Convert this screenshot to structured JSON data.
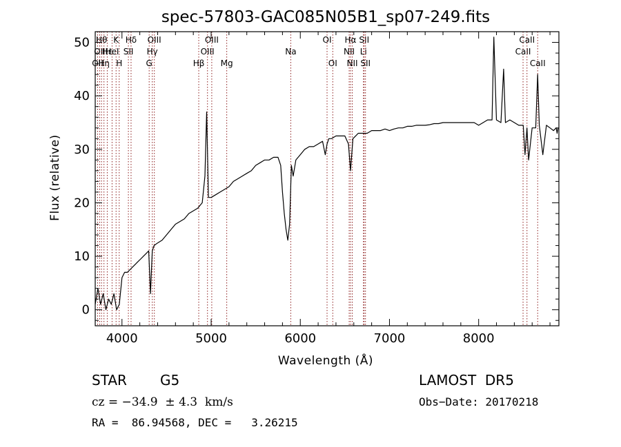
{
  "chart_data": {
    "type": "line",
    "title": "spec-57803-GAC085N05B1_sp07-249.fits",
    "xlabel": "Wavelength (Å)",
    "ylabel": "Flux (relative)",
    "xlim": [
      3700,
      8900
    ],
    "ylim": [
      -3,
      52
    ],
    "xticks": [
      4000,
      5000,
      6000,
      7000,
      8000
    ],
    "yticks": [
      0,
      10,
      20,
      30,
      40,
      50
    ],
    "grid": false,
    "line_color": "#000000",
    "marker_color": "#8b1a1a",
    "series": [
      {
        "x": [
          3700,
          3730,
          3760,
          3790,
          3820,
          3850,
          3880,
          3910,
          3940,
          3970,
          4000,
          4030,
          4060,
          4090,
          4120,
          4150,
          4180,
          4210,
          4240,
          4270,
          4300,
          4320,
          4340,
          4360,
          4400,
          4450,
          4500,
          4550,
          4600,
          4650,
          4700,
          4750,
          4800,
          4850,
          4900,
          4930,
          4950,
          4970,
          5000,
          5050,
          5100,
          5150,
          5200,
          5250,
          5300,
          5350,
          5400,
          5450,
          5500,
          5550,
          5600,
          5650,
          5700,
          5750,
          5780,
          5800,
          5820,
          5840,
          5860,
          5880,
          5900,
          5920,
          5950,
          6000,
          6050,
          6100,
          6150,
          6200,
          6250,
          6280,
          6300,
          6320,
          6350,
          6400,
          6450,
          6500,
          6540,
          6563,
          6590,
          6620,
          6650,
          6700,
          6750,
          6800,
          6850,
          6900,
          6950,
          7000,
          7050,
          7100,
          7150,
          7200,
          7250,
          7300,
          7350,
          7400,
          7450,
          7500,
          7550,
          7600,
          7650,
          7700,
          7750,
          7800,
          7850,
          7900,
          7950,
          8000,
          8050,
          8100,
          8150,
          8170,
          8200,
          8250,
          8280,
          8300,
          8350,
          8400,
          8450,
          8500,
          8520,
          8542,
          8560,
          8600,
          8640,
          8662,
          8680,
          8720,
          8760,
          8800,
          8840,
          8870,
          8880,
          8890
        ],
        "values": [
          1,
          4,
          1,
          3,
          0,
          2,
          1,
          3,
          0,
          1,
          6,
          7,
          7,
          7.5,
          8,
          8.5,
          9,
          9.5,
          10,
          10.5,
          11,
          3,
          11,
          12,
          12.5,
          13,
          14,
          15,
          16,
          16.5,
          17,
          18,
          18.5,
          19,
          20,
          25,
          37,
          21,
          21,
          21.5,
          22,
          22.5,
          23,
          24,
          24.5,
          25,
          25.5,
          26,
          27,
          27.5,
          28,
          28,
          28.5,
          28.5,
          27,
          22,
          18,
          15,
          13,
          16,
          27,
          25,
          28,
          29,
          30,
          30.5,
          30.5,
          31,
          31.5,
          29,
          31,
          32,
          32,
          32.5,
          32.5,
          32.5,
          31,
          26,
          32,
          32.5,
          33,
          33,
          33,
          33.5,
          33.5,
          33.5,
          33.8,
          33.5,
          33.8,
          34,
          34,
          34.3,
          34.3,
          34.5,
          34.5,
          34.5,
          34.6,
          34.8,
          34.8,
          35,
          35,
          35,
          35,
          35,
          35,
          35,
          35,
          34.5,
          35,
          35.5,
          35.5,
          51,
          35.5,
          35,
          45,
          35,
          35.5,
          35,
          34.5,
          34.5,
          29,
          34,
          28,
          34,
          34,
          44,
          34.5,
          29,
          34.5,
          34,
          33.5,
          34,
          33,
          34
        ]
      }
    ],
    "line_markers": [
      {
        "x": 3727,
        "label": "OII",
        "row": 2
      },
      {
        "x": 3750,
        "label": "OII",
        "row": 1
      },
      {
        "x": 3771,
        "label": "Hθ",
        "row": 0
      },
      {
        "x": 3798,
        "label": "Hη",
        "row": 2
      },
      {
        "x": 3835,
        "label": "Hε",
        "row": 1
      },
      {
        "x": 3889,
        "label": "HeI",
        "row": 1
      },
      {
        "x": 3934,
        "label": "K",
        "row": 0
      },
      {
        "x": 3969,
        "label": "H",
        "row": 2
      },
      {
        "x": 4072,
        "label": "SII",
        "row": 1
      },
      {
        "x": 4102,
        "label": "Hδ",
        "row": 0
      },
      {
        "x": 4305,
        "label": "G",
        "row": 2
      },
      {
        "x": 4340,
        "label": "Hγ",
        "row": 1
      },
      {
        "x": 4363,
        "label": "OIII",
        "row": 0
      },
      {
        "x": 4861,
        "label": "Hβ",
        "row": 2
      },
      {
        "x": 4959,
        "label": "OIII",
        "row": 1
      },
      {
        "x": 5007,
        "label": "OIII",
        "row": 0
      },
      {
        "x": 5175,
        "label": "Mg",
        "row": 2
      },
      {
        "x": 5893,
        "label": "Na",
        "row": 1
      },
      {
        "x": 6300,
        "label": "OI",
        "row": 0
      },
      {
        "x": 6364,
        "label": "OI",
        "row": 2
      },
      {
        "x": 6548,
        "label": "NII",
        "row": 1
      },
      {
        "x": 6563,
        "label": "Hα",
        "row": 0
      },
      {
        "x": 6583,
        "label": "NII",
        "row": 2
      },
      {
        "x": 6708,
        "label": "Li",
        "row": 1
      },
      {
        "x": 6716,
        "label": "SII",
        "row": 0
      },
      {
        "x": 6731,
        "label": "SII",
        "row": 2
      },
      {
        "x": 8498,
        "label": "CaII",
        "row": 1
      },
      {
        "x": 8542,
        "label": "CaII",
        "row": 0
      },
      {
        "x": 8662,
        "label": "CaII",
        "row": 2
      }
    ]
  },
  "info": {
    "object_class": "STAR",
    "subclass": "G5",
    "survey": "LAMOST  DR5",
    "cz_line": "cz = −34.9  ± 4.3  km/s",
    "obs_date": "Obs−Date: 20170218",
    "coords": "RA =  86.94568, DEC =   3.26215"
  }
}
